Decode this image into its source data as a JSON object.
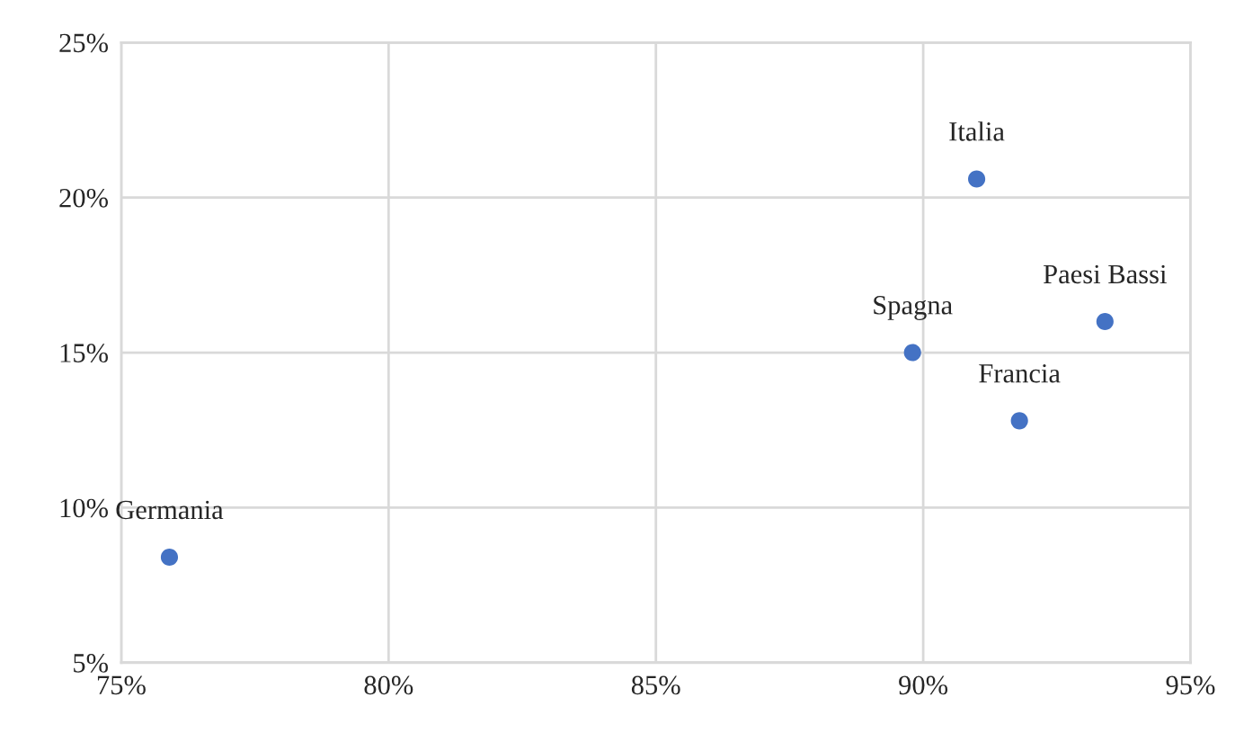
{
  "chart_data": {
    "type": "scatter",
    "x": [
      75.9,
      91.0,
      89.8,
      93.4,
      91.8
    ],
    "values": [
      8.4,
      20.6,
      15.0,
      16.0,
      12.8
    ],
    "color": "#4472c4",
    "marker": "circle",
    "xlim": [
      75,
      95
    ],
    "xticks": [
      {
        "value": 75,
        "label": "75%"
      },
      {
        "value": 80,
        "label": "80%"
      },
      {
        "value": 85,
        "label": "85%"
      },
      {
        "value": 90,
        "label": "90%"
      },
      {
        "value": 95,
        "label": "95%"
      }
    ],
    "ylim": [
      5,
      25
    ],
    "yticks": [
      {
        "value": 5,
        "label": "5%"
      },
      {
        "value": 10,
        "label": "10%"
      },
      {
        "value": 15,
        "label": "15%"
      },
      {
        "value": 20,
        "label": "20%"
      },
      {
        "value": 25,
        "label": "25%"
      }
    ],
    "grid": true,
    "annotations": [
      {
        "text": "Germania",
        "x": 75.9,
        "y": 8.4
      },
      {
        "text": "Italia",
        "x": 91.0,
        "y": 20.6
      },
      {
        "text": "Spagna",
        "x": 89.8,
        "y": 15.0
      },
      {
        "text": "Paesi Bassi",
        "x": 93.4,
        "y": 16.0
      },
      {
        "text": "Francia",
        "x": 91.8,
        "y": 12.8
      }
    ]
  }
}
